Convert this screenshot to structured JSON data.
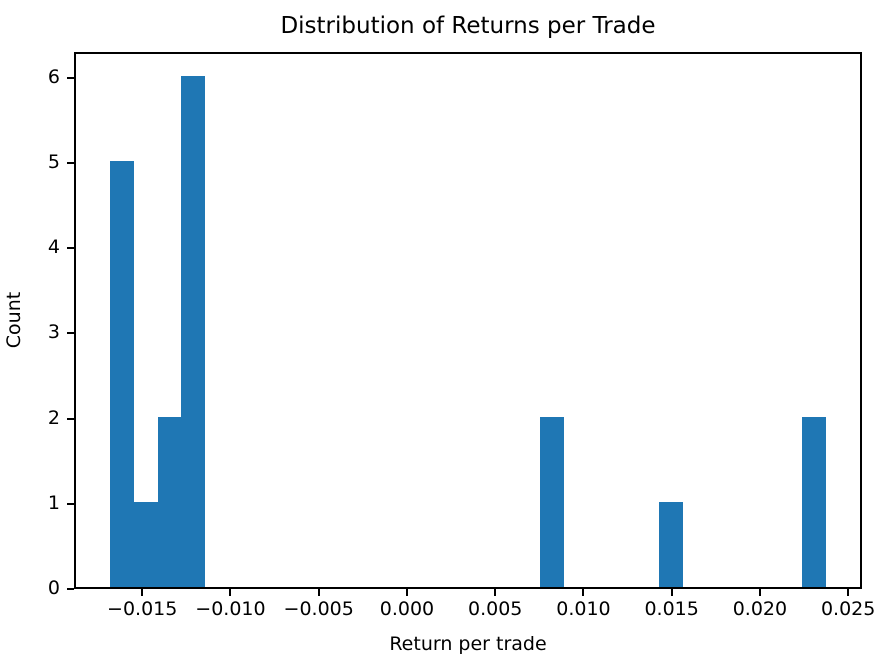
{
  "figure": {
    "title": "Distribution of Returns per Trade",
    "xlabel": "Return per trade",
    "ylabel": "Count"
  },
  "chart_data": {
    "type": "bar",
    "subtype": "histogram",
    "title": "Distribution of Returns per Trade",
    "xlabel": "Return per trade",
    "ylabel": "Count",
    "bar_color": "#1f77b4",
    "axis_color": "#000000",
    "background_color": "#ffffff",
    "grid": false,
    "legend": null,
    "num_bins": 30,
    "bin_start": -0.016836,
    "bin_width": 0.0013532,
    "counts": [
      5,
      1,
      2,
      6,
      0,
      0,
      0,
      0,
      0,
      0,
      0,
      0,
      0,
      0,
      0,
      0,
      0,
      0,
      2,
      0,
      0,
      0,
      0,
      1,
      0,
      0,
      0,
      0,
      0,
      2
    ],
    "xlim": [
      -0.018866,
      0.025784
    ],
    "ylim": [
      0,
      6.3
    ],
    "xticks": [
      -0.015,
      -0.01,
      -0.005,
      0.0,
      0.005,
      0.01,
      0.015,
      0.02,
      0.025
    ],
    "xtick_labels": [
      "−0.015",
      "−0.010",
      "−0.005",
      "0.000",
      "0.005",
      "0.010",
      "0.015",
      "0.020",
      "0.025"
    ],
    "yticks": [
      0,
      1,
      2,
      3,
      4,
      5,
      6
    ],
    "ytick_labels": [
      "0",
      "1",
      "2",
      "3",
      "4",
      "5",
      "6"
    ]
  }
}
